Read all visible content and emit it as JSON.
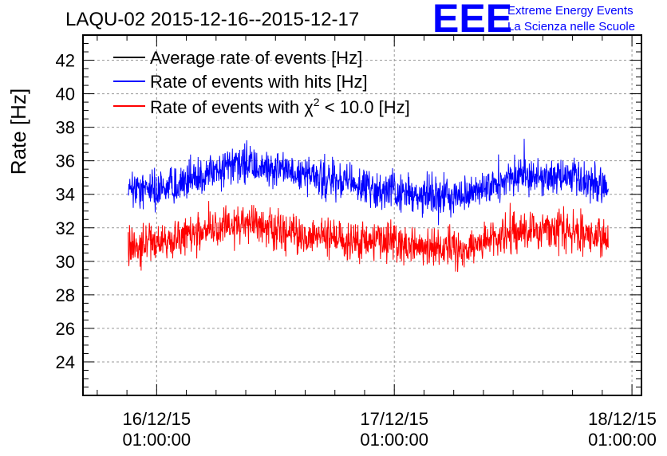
{
  "chart_data": {
    "type": "line",
    "title": "LAQU-02 2015-12-16--2015-12-17",
    "xlabel": "",
    "ylabel": "Rate [Hz]",
    "ylim": [
      22,
      43.5
    ],
    "y_ticks": [
      24,
      26,
      28,
      30,
      32,
      34,
      36,
      38,
      40,
      42
    ],
    "x_ticks": [
      {
        "pos": 0,
        "date": "16/12/15",
        "time": "01:00:00"
      },
      {
        "pos": 1,
        "date": "17/12/15",
        "time": "01:00:00"
      },
      {
        "pos": 2,
        "date": "18/12/15",
        "time": "01:00:00"
      }
    ],
    "xlim_days": [
      -0.31,
      2.04
    ],
    "data_range_days": [
      -0.12,
      1.9
    ],
    "grid": true,
    "legend_position": "top-left",
    "series": [
      {
        "name": "Average rate of events [Hz]",
        "color": "#000000",
        "note": "not visible; drawn underneath the blue series"
      },
      {
        "name": "Rate of events with hits [Hz]",
        "color": "#0000ff",
        "key_days": [
          -0.12,
          0.1,
          0.35,
          0.55,
          0.8,
          1.1,
          1.3,
          1.55,
          1.75,
          1.9
        ],
        "key_values": [
          34.2,
          34.6,
          35.8,
          35.4,
          34.6,
          34.0,
          33.9,
          35.2,
          35.0,
          34.5
        ],
        "noise_band": 1.0
      },
      {
        "name": "Rate of events with χ2 < 10.0 [Hz]",
        "color": "#ff0000",
        "key_days": [
          -0.12,
          0.1,
          0.35,
          0.55,
          0.8,
          1.1,
          1.3,
          1.55,
          1.75,
          1.9
        ],
        "key_values": [
          31.0,
          31.3,
          32.4,
          31.7,
          31.2,
          30.9,
          30.8,
          31.9,
          31.8,
          31.3
        ],
        "noise_band": 1.0
      }
    ],
    "legend": {
      "black": "Average rate of events [Hz]",
      "blue": "Rate of events with hits [Hz]",
      "red_prefix": "Rate of events with ",
      "red_chi": "χ",
      "red_sup": "2",
      "red_suffix": " < 10.0 [Hz]"
    }
  },
  "logo": {
    "mark": "EEE",
    "line1": "Extreme Energy Events",
    "line2": "La Scienza nelle Scuole",
    "color": "#0000ff"
  }
}
